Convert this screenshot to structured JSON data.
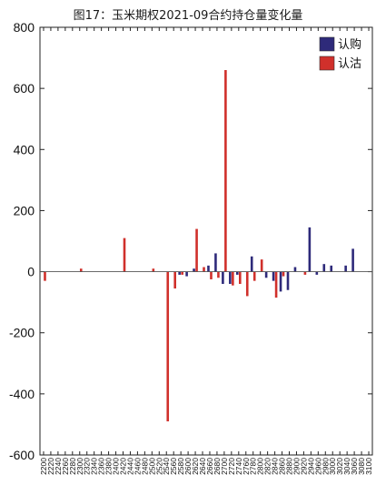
{
  "chart_data": {
    "type": "bar",
    "title": "图17：玉米期权2021-09合约持仓量变化量",
    "ylim": [
      -600,
      800
    ],
    "yticks": [
      -600,
      -400,
      -200,
      0,
      200,
      400,
      600,
      800
    ],
    "legend_position": "top-right",
    "grid": false,
    "categories": [
      "2200",
      "2220",
      "2240",
      "2260",
      "2280",
      "2300",
      "2320",
      "2340",
      "2360",
      "2380",
      "2400",
      "2420",
      "2440",
      "2460",
      "2480",
      "2500",
      "2520",
      "2540",
      "2560",
      "2580",
      "2600",
      "2620",
      "2640",
      "2660",
      "2680",
      "2700",
      "2720",
      "2740",
      "2760",
      "2780",
      "2800",
      "2820",
      "2840",
      "2860",
      "2880",
      "2900",
      "2920",
      "2940",
      "2960",
      "2980",
      "3000",
      "3020",
      "3040",
      "3060",
      "3080",
      "3100"
    ],
    "series": [
      {
        "name": "认购",
        "color": "#2e2a7a",
        "values": [
          0,
          0,
          0,
          0,
          0,
          0,
          0,
          0,
          0,
          0,
          0,
          0,
          0,
          0,
          0,
          0,
          0,
          0,
          0,
          -10,
          -15,
          10,
          0,
          20,
          60,
          -40,
          -40,
          -10,
          0,
          50,
          0,
          -20,
          -30,
          -65,
          -60,
          15,
          0,
          145,
          -10,
          25,
          20,
          0,
          20,
          75,
          0,
          0
        ]
      },
      {
        "name": "认沽",
        "color": "#d0302b",
        "values": [
          -30,
          0,
          0,
          0,
          0,
          10,
          0,
          0,
          0,
          0,
          0,
          110,
          0,
          0,
          0,
          10,
          0,
          -490,
          -55,
          -10,
          0,
          140,
          15,
          -25,
          -20,
          660,
          -45,
          -40,
          -80,
          -30,
          40,
          0,
          -85,
          -15,
          0,
          0,
          -10,
          0,
          0,
          0,
          0,
          0,
          0,
          0,
          0,
          0
        ]
      }
    ]
  }
}
